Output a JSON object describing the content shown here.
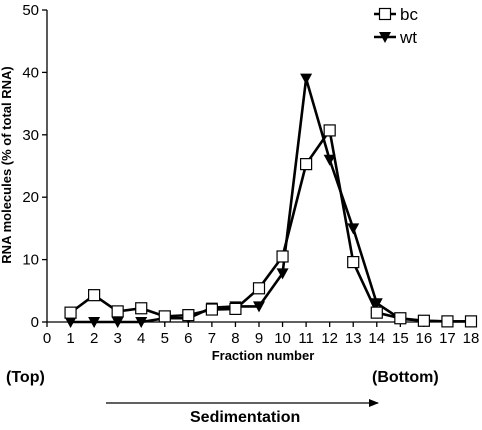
{
  "chart_data": {
    "type": "line",
    "xlabel": "Fraction number",
    "ylabel": "RNA molecules (% of total RNA)",
    "x": [
      1,
      2,
      3,
      4,
      5,
      6,
      7,
      8,
      9,
      10,
      11,
      12,
      13,
      14,
      15,
      16,
      17,
      18
    ],
    "xlim": [
      0,
      18
    ],
    "ylim": [
      0,
      50
    ],
    "xticks": [
      0,
      1,
      2,
      3,
      4,
      5,
      6,
      7,
      8,
      9,
      10,
      11,
      12,
      13,
      14,
      15,
      16,
      17,
      18
    ],
    "yticks": [
      0,
      10,
      20,
      30,
      40,
      50
    ],
    "legend_position": "top-right",
    "series": [
      {
        "name": "bc",
        "marker": "square-open",
        "values": [
          1.5,
          4.3,
          1.7,
          2.2,
          0.9,
          1.1,
          2.0,
          2.1,
          5.4,
          10.5,
          25.3,
          30.7,
          9.6,
          1.5,
          0.6,
          0.2,
          0.1,
          0.1
        ]
      },
      {
        "name": "wt",
        "marker": "triangle-down-filled",
        "values": [
          0,
          0,
          0,
          0,
          0.6,
          0.6,
          2.3,
          2.5,
          2.5,
          7.8,
          39.0,
          26.0,
          15.0,
          3.0,
          0.5,
          0.2,
          0.1,
          0.1
        ]
      }
    ]
  },
  "annotations": {
    "top_label": "(Top)",
    "bottom_label": "(Bottom)",
    "direction_label": "Sedimentation"
  },
  "colors": {
    "line": "#000000",
    "background": "#ffffff"
  }
}
